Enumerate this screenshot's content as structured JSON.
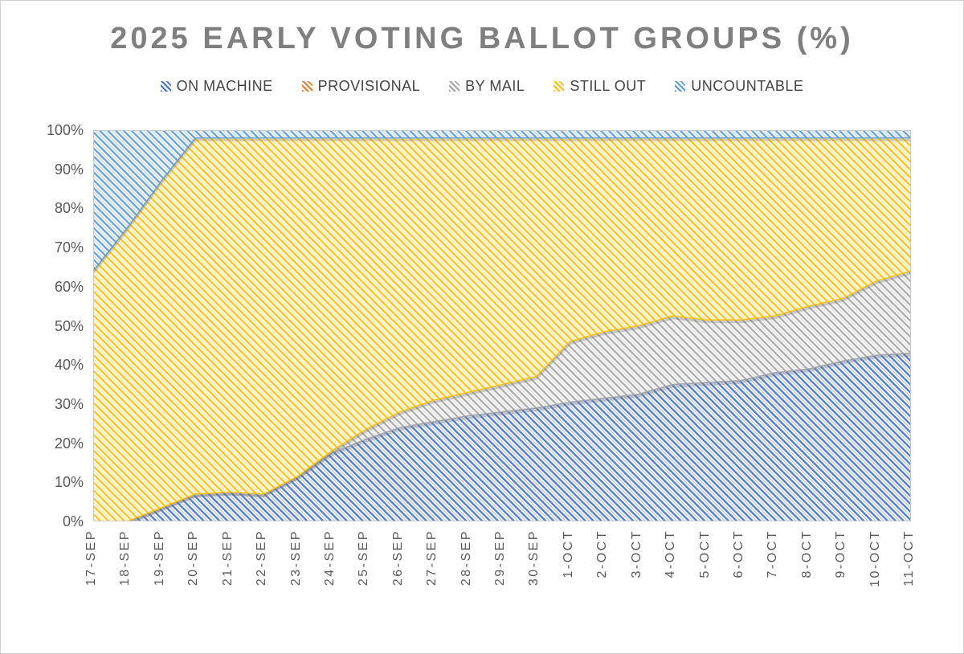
{
  "page": {
    "background": "#ffffff",
    "border_color": "#d0d0d0"
  },
  "chart_data": {
    "type": "area",
    "stacked": true,
    "percent_stacked": true,
    "title": "2025 EARLY VOTING BALLOT GROUPS (%)",
    "title_color": "#7f7f7f",
    "legend_position": "top",
    "grid": false,
    "axis_label_color": "#595959",
    "plot_border_color": "#c9c9c9",
    "ylim": [
      0,
      100
    ],
    "y_ticks": [
      {
        "value": 0,
        "label": "0%"
      },
      {
        "value": 10,
        "label": "10%"
      },
      {
        "value": 20,
        "label": "20%"
      },
      {
        "value": 30,
        "label": "30%"
      },
      {
        "value": 40,
        "label": "40%"
      },
      {
        "value": 50,
        "label": "50%"
      },
      {
        "value": 60,
        "label": "60%"
      },
      {
        "value": 70,
        "label": "70%"
      },
      {
        "value": 80,
        "label": "80%"
      },
      {
        "value": 90,
        "label": "90%"
      },
      {
        "value": 100,
        "label": "100%"
      }
    ],
    "x": [
      "17-SEP",
      "18-SEP",
      "19-SEP",
      "20-SEP",
      "21-SEP",
      "22-SEP",
      "23-SEP",
      "24-SEP",
      "25-SEP",
      "26-SEP",
      "27-SEP",
      "28-SEP",
      "29-SEP",
      "30-SEP",
      "1-OCT",
      "2-OCT",
      "3-OCT",
      "4-OCT",
      "5-OCT",
      "6-OCT",
      "7-OCT",
      "8-OCT",
      "9-OCT",
      "10-OCT",
      "11-OCT"
    ],
    "series": [
      {
        "name": "ON MACHINE",
        "color": "#4472C4",
        "values": [
          0,
          0,
          3.5,
          7,
          7.5,
          7,
          11.5,
          17.5,
          21,
          24,
          25.5,
          27,
          28,
          29,
          30.5,
          31.5,
          32.5,
          35,
          35.5,
          36,
          38,
          39,
          41,
          42.5,
          43
        ]
      },
      {
        "name": "PROVISIONAL",
        "color": "#ED7D31",
        "values": [
          0,
          0,
          0,
          0,
          0,
          0,
          0,
          0,
          0,
          0,
          0,
          0,
          0,
          0,
          0,
          0,
          0,
          0,
          0,
          0,
          0,
          0,
          0,
          0,
          0
        ]
      },
      {
        "name": "BY MAIL",
        "color": "#A5A5A5",
        "values": [
          0,
          0,
          0,
          0,
          0,
          0,
          0,
          0.5,
          2.5,
          4,
          5.5,
          6,
          7,
          8,
          15.5,
          17,
          17.5,
          17.5,
          16,
          15.5,
          14.5,
          16,
          16,
          19,
          21
        ]
      },
      {
        "name": "STILL OUT",
        "color": "#FFC000",
        "values": [
          64,
          75,
          83.5,
          91,
          90.5,
          91,
          86.5,
          80,
          74.5,
          70,
          67,
          65,
          63,
          61,
          52,
          49.5,
          48,
          45.5,
          46.5,
          46.5,
          45.5,
          43,
          41,
          36.5,
          34
        ]
      },
      {
        "name": "UNCOUNTABLE",
        "color": "#5B9BD5",
        "values": [
          36,
          25,
          13,
          2,
          2,
          2,
          2,
          2,
          2,
          2,
          2,
          2,
          2,
          2,
          2,
          2,
          2,
          2,
          2,
          2,
          2,
          2,
          2,
          2,
          2
        ]
      }
    ]
  }
}
